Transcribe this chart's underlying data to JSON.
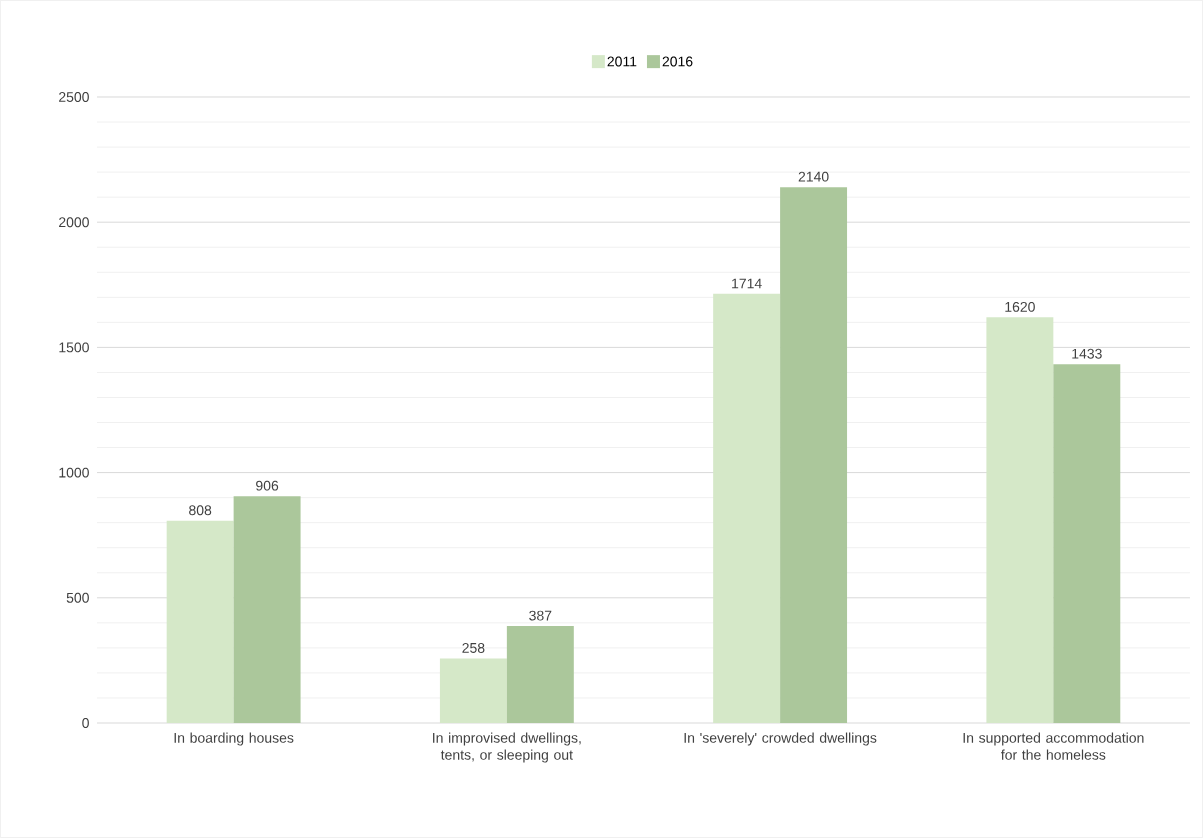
{
  "chart_data": {
    "type": "bar",
    "categories": [
      "In boarding houses",
      "In improvised dwellings, tents, or sleeping out",
      "In 'severely' crowded dwellings",
      "In supported accommodation for the homeless"
    ],
    "series": [
      {
        "name": "2011",
        "color": "#d5e8c8",
        "values": [
          808,
          258,
          1714,
          1620
        ]
      },
      {
        "name": "2016",
        "color": "#abc79b",
        "values": [
          906,
          387,
          2140,
          1433
        ]
      }
    ],
    "ylim": [
      0,
      2500
    ],
    "yticks": [
      0,
      {
        "value": 100,
        "label": null
      },
      {
        "value": 200,
        "label": null
      },
      {
        "value": 300,
        "label": null
      },
      {
        "value": 400,
        "label": null
      },
      500,
      {
        "value": 600,
        "label": null
      },
      {
        "value": 700,
        "label": null
      },
      {
        "value": 800,
        "label": null
      },
      {
        "value": 900,
        "label": null
      },
      1000,
      {
        "value": 1100,
        "label": null
      },
      {
        "value": 1200,
        "label": null
      },
      {
        "value": 1300,
        "label": null
      },
      {
        "value": 1400,
        "label": null
      },
      1500,
      {
        "value": 1600,
        "label": null
      },
      {
        "value": 1700,
        "label": null
      },
      {
        "value": 1800,
        "label": null
      },
      {
        "value": 1900,
        "label": null
      },
      2000,
      {
        "value": 2100,
        "label": null
      },
      {
        "value": 2200,
        "label": null
      },
      {
        "value": 2300,
        "label": null
      },
      {
        "value": 2400,
        "label": null
      },
      2500
    ],
    "grid": "y",
    "legend": "top",
    "data_labels": true
  }
}
